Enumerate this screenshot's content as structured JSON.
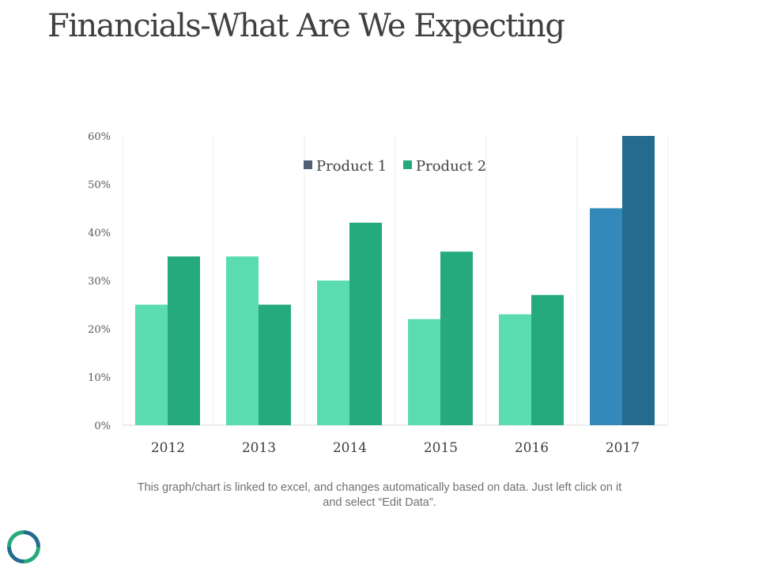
{
  "title": "Financials-What Are We Expecting",
  "note_line1": "This graph/chart is linked to excel, and changes automatically based on data. Just left click on it",
  "note_line2": "and select “Edit Data”.",
  "chart_data": {
    "type": "bar",
    "title": "",
    "xlabel": "",
    "ylabel": "",
    "categories": [
      "2012",
      "2013",
      "2014",
      "2015",
      "2016",
      "2017"
    ],
    "series": [
      {
        "name": "Product 1",
        "values": [
          25,
          35,
          30,
          22,
          23,
          45
        ]
      },
      {
        "name": "Product 2",
        "values": [
          35,
          25,
          42,
          36,
          27,
          60
        ]
      }
    ],
    "ylim": [
      0,
      60
    ],
    "yticks": [
      "0%",
      "10%",
      "20%",
      "30%",
      "40%",
      "50%",
      "60%"
    ],
    "grid": "vertical category separators",
    "legend": "top-center",
    "colors": {
      "product1": "#5ADBB0",
      "product2": "#25AA7D",
      "product1_highlight": "#3389BA",
      "product2_highlight": "#246B8E",
      "legend_product1": "#4F6175",
      "legend_product2": "#25AA7D"
    }
  }
}
